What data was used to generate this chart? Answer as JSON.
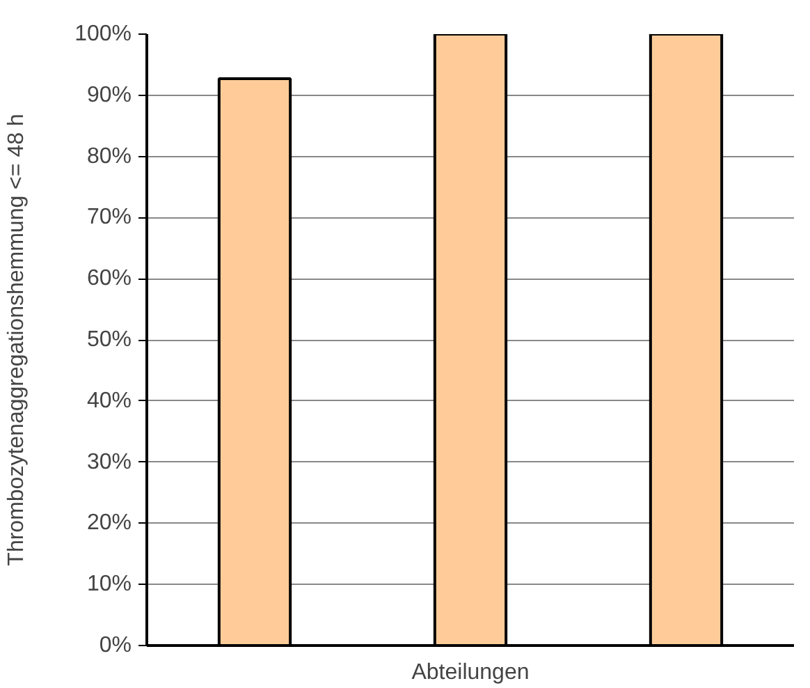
{
  "chart_data": {
    "type": "bar",
    "xlabel": "Abteilungen",
    "ylabel": "Thrombozytenaggregationshemmung <= 48 h",
    "categories": [
      null,
      null,
      null
    ],
    "values": [
      92.7,
      100,
      100
    ],
    "color": "#ffcc99",
    "ylim": [
      0,
      100
    ],
    "yticks": [
      {
        "value": 0,
        "label": "0%"
      },
      {
        "value": 10,
        "label": "10%"
      },
      {
        "value": 20,
        "label": "20%"
      },
      {
        "value": 30,
        "label": "30%"
      },
      {
        "value": 40,
        "label": "40%"
      },
      {
        "value": 50,
        "label": "50%"
      },
      {
        "value": 60,
        "label": "60%"
      },
      {
        "value": 70,
        "label": "70%"
      },
      {
        "value": 80,
        "label": "80%"
      },
      {
        "value": 90,
        "label": "90%"
      },
      {
        "value": 100,
        "label": "100%"
      }
    ],
    "grid": "y"
  }
}
